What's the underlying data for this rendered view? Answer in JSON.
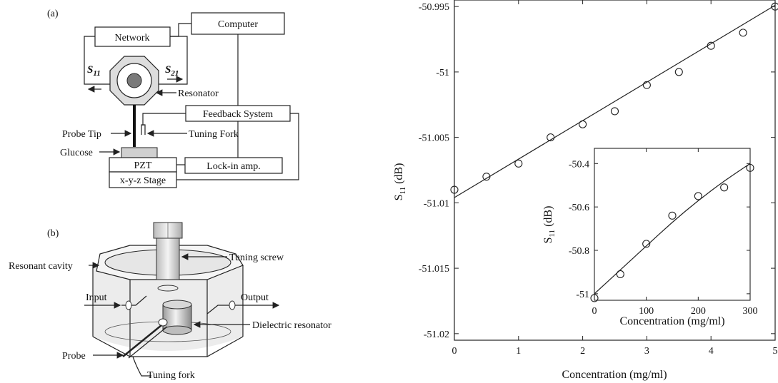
{
  "diagram_a": {
    "panel_label": "(a)",
    "network": "Network",
    "computer": "Computer",
    "s11": "S",
    "s11_sub": "11",
    "s21": "S",
    "s21_sub": "21",
    "resonator": "Resonator",
    "feedback": "Feedback System",
    "probe_tip": "Probe Tip",
    "tuning_fork": "Tuning Fork",
    "glucose": "Glucose",
    "pzt": "PZT",
    "lockin": "Lock-in amp.",
    "stage": "x-y-z Stage"
  },
  "diagram_b": {
    "panel_label": "(b)",
    "resonant_cavity": "Resonant cavity",
    "tuning_screw": "Tuning screw",
    "input": "Input",
    "output": "Output",
    "dielectric_resonator": "Dielectric resonator",
    "probe": "Probe",
    "tuning_fork": "Tuning fork"
  },
  "chart_data": [
    {
      "type": "scatter",
      "xlabel": "Concentration (mg/ml)",
      "ylabel_main": "S",
      "ylabel_sub": "11",
      "ylabel_unit": " (dB)",
      "xlim": [
        0,
        5
      ],
      "ylim": [
        -51.0205,
        -50.9945
      ],
      "xticks": [
        "0",
        "1",
        "2",
        "3",
        "4",
        "5"
      ],
      "xtick_values": [
        0,
        1,
        2,
        3,
        4,
        5
      ],
      "yticks": [
        "-50.995",
        "-51",
        "-51.005",
        "-51.01",
        "-51.015",
        "-51.02"
      ],
      "ytick_values": [
        -50.995,
        -51,
        -51.005,
        -51.01,
        -51.015,
        -51.02
      ],
      "points": [
        {
          "x": 0,
          "y": -51.009
        },
        {
          "x": 0.5,
          "y": -51.008
        },
        {
          "x": 1,
          "y": -51.007
        },
        {
          "x": 1.5,
          "y": -51.005
        },
        {
          "x": 2,
          "y": -51.004
        },
        {
          "x": 2.5,
          "y": -51.003
        },
        {
          "x": 3,
          "y": -51.001
        },
        {
          "x": 3.5,
          "y": -51.0
        },
        {
          "x": 4,
          "y": -50.998
        },
        {
          "x": 4.5,
          "y": -50.997
        },
        {
          "x": 5,
          "y": -50.995
        }
      ],
      "fit_line": [
        {
          "x": 0,
          "y": -51.0096
        },
        {
          "x": 5,
          "y": -50.9949
        }
      ]
    },
    {
      "type": "scatter",
      "inset": true,
      "xlabel": "Concentration (mg/ml)",
      "ylabel_main": "S",
      "ylabel_sub": "11",
      "ylabel_unit": " (dB)",
      "xlim": [
        0,
        300
      ],
      "ylim": [
        -51.03,
        -50.33
      ],
      "xticks": [
        "0",
        "100",
        "200",
        "300"
      ],
      "xtick_values": [
        0,
        100,
        200,
        300
      ],
      "yticks": [
        "-50.4",
        "-50.6",
        "-50.8",
        "-51"
      ],
      "ytick_values": [
        -50.4,
        -50.6,
        -50.8,
        -51
      ],
      "points": [
        {
          "x": 0,
          "y": -51.02
        },
        {
          "x": 50,
          "y": -50.91
        },
        {
          "x": 100,
          "y": -50.77
        },
        {
          "x": 150,
          "y": -50.64
        },
        {
          "x": 200,
          "y": -50.55
        },
        {
          "x": 250,
          "y": -50.51
        },
        {
          "x": 300,
          "y": -50.42
        }
      ],
      "fit_curve": [
        {
          "x": 0,
          "y": -51.0
        },
        {
          "x": 50,
          "y": -50.89
        },
        {
          "x": 100,
          "y": -50.78
        },
        {
          "x": 150,
          "y": -50.67
        },
        {
          "x": 200,
          "y": -50.57
        },
        {
          "x": 250,
          "y": -50.48
        },
        {
          "x": 300,
          "y": -50.4
        }
      ]
    }
  ]
}
